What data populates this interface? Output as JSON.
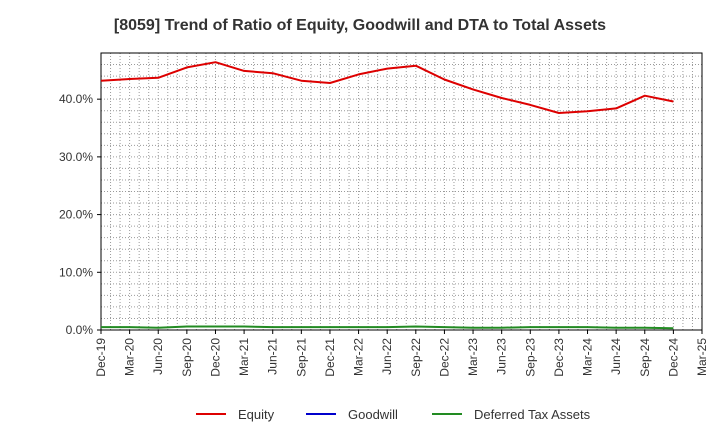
{
  "chart_data": {
    "type": "line",
    "title": "[8059]  Trend of Ratio of Equity, Goodwill and DTA to Total Assets",
    "xlabel": "",
    "ylabel": "",
    "categories": [
      "Dec-19",
      "Mar-20",
      "Jun-20",
      "Sep-20",
      "Dec-20",
      "Mar-21",
      "Jun-21",
      "Sep-21",
      "Dec-21",
      "Mar-22",
      "Jun-22",
      "Sep-22",
      "Dec-22",
      "Mar-23",
      "Jun-23",
      "Sep-23",
      "Dec-23",
      "Mar-24",
      "Jun-24",
      "Sep-24",
      "Dec-24",
      "Mar-25"
    ],
    "ylim": [
      0,
      48
    ],
    "yticks": [
      0,
      10,
      20,
      30,
      40
    ],
    "ytick_labels": [
      "0.0%",
      "10.0%",
      "20.0%",
      "30.0%",
      "40.0%"
    ],
    "grid": true,
    "legend_position": "bottom",
    "series": [
      {
        "name": "Equity",
        "color": "#dd0000",
        "values": [
          43.2,
          43.5,
          43.7,
          45.5,
          46.4,
          44.9,
          44.5,
          43.2,
          42.8,
          44.3,
          45.3,
          45.8,
          43.4,
          41.7,
          40.2,
          39.0,
          37.6,
          37.9,
          38.4,
          40.6,
          39.6,
          null
        ]
      },
      {
        "name": "Goodwill",
        "color": "#0000cc",
        "values": [
          null,
          null,
          null,
          null,
          null,
          null,
          null,
          null,
          null,
          null,
          null,
          null,
          null,
          null,
          null,
          null,
          null,
          null,
          null,
          null,
          null,
          null
        ]
      },
      {
        "name": "Deferred Tax Assets",
        "color": "#228b22",
        "values": [
          0.5,
          0.5,
          0.4,
          0.6,
          0.6,
          0.6,
          0.5,
          0.5,
          0.5,
          0.5,
          0.5,
          0.6,
          0.5,
          0.4,
          0.4,
          0.5,
          0.5,
          0.5,
          0.4,
          0.4,
          0.3,
          null
        ]
      }
    ]
  }
}
